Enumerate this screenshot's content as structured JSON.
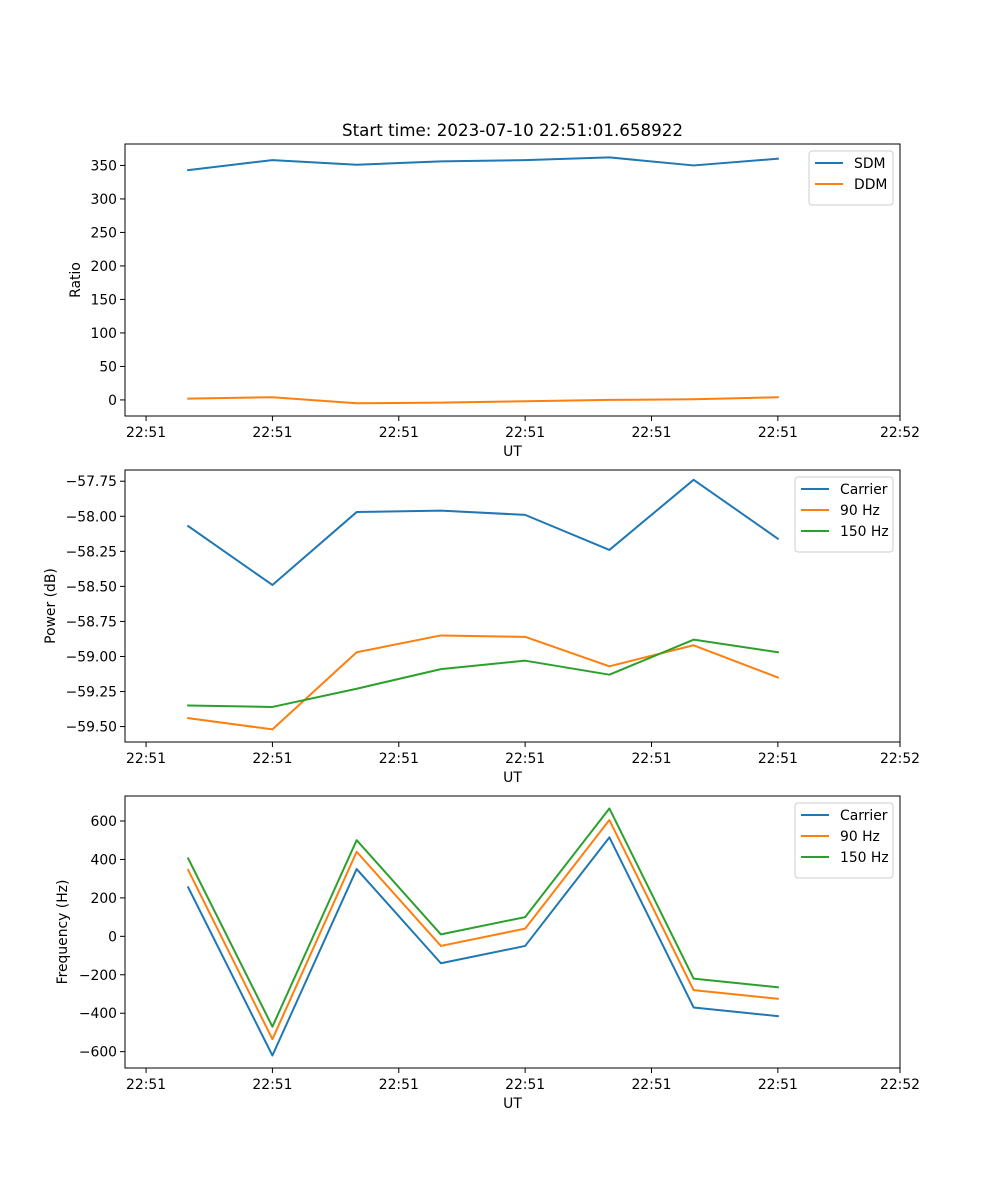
{
  "title": "Start time: 2023-07-10 22:51:01.658922",
  "colors": {
    "blue": "#1f77b4",
    "orange": "#ff7f0e",
    "green": "#2ca02c"
  },
  "chart_data": [
    {
      "type": "line",
      "title": "Start time: 2023-07-10 22:51:01.658922",
      "xlabel": "UT",
      "ylabel": "Ratio",
      "x_index": [
        0,
        1,
        2,
        3,
        4,
        5,
        6,
        7
      ],
      "xlim": [
        -0.75,
        8.45
      ],
      "x_ticks": [
        -0.5,
        1,
        2.5,
        4,
        5.5,
        7,
        8.45
      ],
      "x_tick_labels": [
        "22:51",
        "22:51",
        "22:51",
        "22:51",
        "22:51",
        "22:51",
        "22:52"
      ],
      "ylim": [
        -24,
        382
      ],
      "y_ticks": [
        0,
        50,
        100,
        150,
        200,
        250,
        300,
        350
      ],
      "y_tick_labels": [
        "0",
        "50",
        "100",
        "150",
        "200",
        "250",
        "300",
        "350"
      ],
      "legend": "top-right",
      "series": [
        {
          "name": "SDM",
          "color": "#1f77b4",
          "values": [
            343,
            358,
            351,
            356,
            358,
            362,
            350,
            360
          ]
        },
        {
          "name": "DDM",
          "color": "#ff7f0e",
          "values": [
            2,
            4,
            -5,
            -4,
            -2,
            0,
            1,
            4
          ]
        }
      ]
    },
    {
      "type": "line",
      "title": "",
      "xlabel": "UT",
      "ylabel": "Power (dB)",
      "x_index": [
        0,
        1,
        2,
        3,
        4,
        5,
        6,
        7
      ],
      "xlim": [
        -0.75,
        8.45
      ],
      "x_ticks": [
        -0.5,
        1,
        2.5,
        4,
        5.5,
        7,
        8.45
      ],
      "x_tick_labels": [
        "22:51",
        "22:51",
        "22:51",
        "22:51",
        "22:51",
        "22:51",
        "22:52"
      ],
      "ylim": [
        -59.61,
        -57.67
      ],
      "y_ticks": [
        -59.5,
        -59.25,
        -59.0,
        -58.75,
        -58.5,
        -58.25,
        -58.0,
        -57.75
      ],
      "y_tick_labels": [
        "−59.50",
        "−59.25",
        "−59.00",
        "−58.75",
        "−58.50",
        "−58.25",
        "−58.00",
        "−57.75"
      ],
      "legend": "top-right",
      "series": [
        {
          "name": "Carrier",
          "color": "#1f77b4",
          "values": [
            -58.07,
            -58.49,
            -57.97,
            -57.96,
            -57.99,
            -58.24,
            -57.74,
            -58.16
          ]
        },
        {
          "name": "90 Hz",
          "color": "#ff7f0e",
          "values": [
            -59.44,
            -59.52,
            -58.97,
            -58.85,
            -58.86,
            -59.07,
            -58.92,
            -59.15
          ]
        },
        {
          "name": "150 Hz",
          "color": "#2ca02c",
          "values": [
            -59.35,
            -59.36,
            -59.23,
            -59.09,
            -59.03,
            -59.13,
            -58.88,
            -58.97
          ]
        }
      ]
    },
    {
      "type": "line",
      "title": "",
      "xlabel": "UT",
      "ylabel": "Frequency (Hz)",
      "x_index": [
        0,
        1,
        2,
        3,
        4,
        5,
        6,
        7
      ],
      "xlim": [
        -0.75,
        8.45
      ],
      "x_ticks": [
        -0.5,
        1,
        2.5,
        4,
        5.5,
        7,
        8.45
      ],
      "x_tick_labels": [
        "22:51",
        "22:51",
        "22:51",
        "22:51",
        "22:51",
        "22:51",
        "22:52"
      ],
      "ylim": [
        -685,
        730
      ],
      "y_ticks": [
        -600,
        -400,
        -200,
        0,
        200,
        400,
        600
      ],
      "y_tick_labels": [
        "−600",
        "−400",
        "−200",
        "0",
        "200",
        "400",
        "600"
      ],
      "legend": "top-right",
      "series": [
        {
          "name": "Carrier",
          "color": "#1f77b4",
          "values": [
            255,
            -620,
            350,
            -140,
            -50,
            515,
            -370,
            -415
          ]
        },
        {
          "name": "90 Hz",
          "color": "#ff7f0e",
          "values": [
            345,
            -535,
            440,
            -50,
            40,
            605,
            -280,
            -325
          ]
        },
        {
          "name": "150 Hz",
          "color": "#2ca02c",
          "values": [
            405,
            -470,
            500,
            10,
            100,
            665,
            -220,
            -265
          ]
        }
      ]
    }
  ]
}
